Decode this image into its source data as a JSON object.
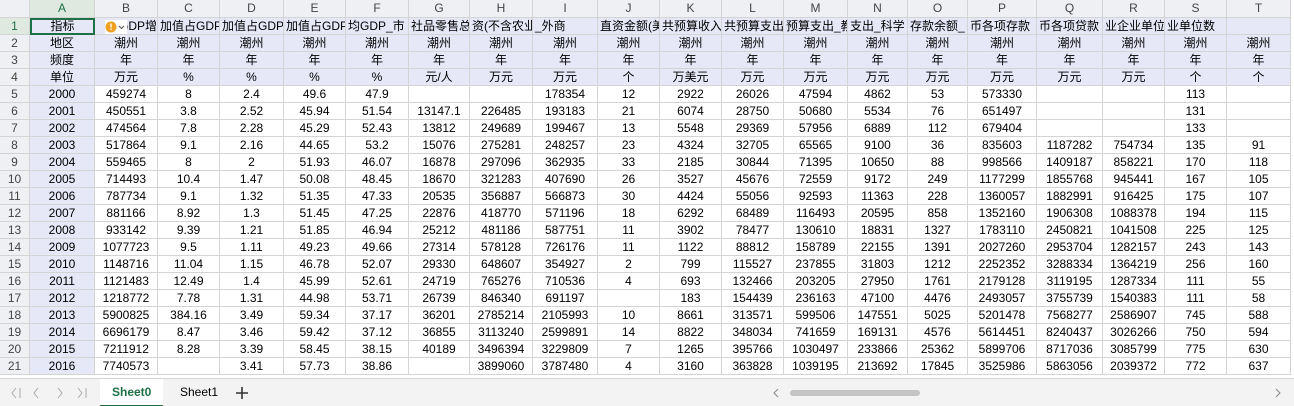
{
  "sheet": {
    "columns": [
      "A",
      "B",
      "C",
      "D",
      "E",
      "F",
      "G",
      "H",
      "I",
      "J",
      "K",
      "L",
      "M",
      "N",
      "O",
      "P",
      "Q",
      "R",
      "S",
      "T"
    ],
    "rows": [
      {
        "number": 1,
        "cells": [
          "指标",
          "GDP增速_市",
          "加值占GDP",
          "加值占GDP",
          "加值占GDP",
          "均GDP_市",
          "社品零售总额",
          "资(不含农业数",
          "_外商",
          "直资金额(美",
          "共预算收入",
          "共预算支出",
          "预算支出_教",
          "支出_科学",
          "存款余额_",
          "币各项存款",
          "币各项贷款",
          "业企业单位",
          "业单位数",
          null
        ]
      },
      {
        "number": 2,
        "cells": [
          "地区",
          "潮州",
          "潮州",
          "潮州",
          "潮州",
          "潮州",
          "潮州",
          "潮州",
          "潮州",
          "潮州",
          "潮州",
          "潮州",
          "潮州",
          "潮州",
          "潮州",
          "潮州",
          "潮州",
          "潮州",
          "潮州",
          "潮州"
        ]
      },
      {
        "number": 3,
        "cells": [
          "频度",
          "年",
          "年",
          "年",
          "年",
          "年",
          "年",
          "年",
          "年",
          "年",
          "年",
          "年",
          "年",
          "年",
          "年",
          "年",
          "年",
          "年",
          "年",
          "年"
        ]
      },
      {
        "number": 4,
        "cells": [
          "单位",
          "万元",
          "%",
          "%",
          "%",
          "%",
          "元/人",
          "万元",
          "万元",
          "个",
          "万美元",
          "万元",
          "万元",
          "万元",
          "万元",
          "万元",
          "万元",
          "万元",
          "个",
          "个"
        ]
      },
      {
        "number": 5,
        "cells": [
          2000,
          459274,
          8,
          2.4,
          49.6,
          47.9,
          null,
          null,
          178354,
          12,
          2922,
          26026,
          47594,
          4862,
          53,
          573330,
          null,
          null,
          113,
          null
        ]
      },
      {
        "number": 6,
        "cells": [
          2001,
          450551,
          3.8,
          2.52,
          45.94,
          51.54,
          13147.1,
          226485,
          193183,
          21,
          6074,
          28750,
          50680,
          5534,
          76,
          651497,
          null,
          null,
          131,
          null
        ]
      },
      {
        "number": 7,
        "cells": [
          2002,
          474564,
          7.8,
          2.28,
          45.29,
          52.43,
          13812,
          249689,
          199467,
          13,
          5548,
          29369,
          57956,
          6889,
          112,
          679404,
          null,
          null,
          133,
          null
        ]
      },
      {
        "number": 8,
        "cells": [
          2003,
          517864,
          9.1,
          2.16,
          44.65,
          53.2,
          15076,
          275281,
          248257,
          23,
          4324,
          32705,
          65565,
          9100,
          36,
          835603,
          1187282,
          754734,
          135,
          91
        ]
      },
      {
        "number": 9,
        "cells": [
          2004,
          559465,
          8,
          2,
          51.93,
          46.07,
          16878,
          297096,
          362935,
          33,
          2185,
          30844,
          71395,
          10650,
          88,
          998566,
          1409187,
          858221,
          170,
          118
        ]
      },
      {
        "number": 10,
        "cells": [
          2005,
          714493,
          10.4,
          1.47,
          50.08,
          48.45,
          18670,
          321283,
          407690,
          26,
          3527,
          45676,
          72559,
          9172,
          249,
          1177299,
          1855768,
          945441,
          167,
          105
        ]
      },
      {
        "number": 11,
        "cells": [
          2006,
          787734,
          9.1,
          1.32,
          51.35,
          47.33,
          20535,
          356887,
          566873,
          30,
          4424,
          55056,
          92593,
          11363,
          228,
          1360057,
          1882991,
          916425,
          175,
          107
        ]
      },
      {
        "number": 12,
        "cells": [
          2007,
          881166,
          8.92,
          1.3,
          51.45,
          47.25,
          22876,
          418770,
          571196,
          18,
          6292,
          68489,
          116493,
          20595,
          858,
          1352160,
          1906308,
          1088378,
          194,
          115
        ]
      },
      {
        "number": 13,
        "cells": [
          2008,
          933142,
          9.39,
          1.21,
          51.85,
          46.94,
          25212,
          481186,
          587751,
          11,
          3902,
          78477,
          130610,
          18831,
          1327,
          1783110,
          2450821,
          1041508,
          225,
          125
        ]
      },
      {
        "number": 14,
        "cells": [
          2009,
          1077723,
          9.5,
          1.11,
          49.23,
          49.66,
          27314,
          578128,
          726176,
          11,
          1122,
          88812,
          158789,
          22155,
          1391,
          2027260,
          2953704,
          1282157,
          243,
          143
        ]
      },
      {
        "number": 15,
        "cells": [
          2010,
          1148716,
          11.04,
          1.15,
          46.78,
          52.07,
          29330,
          648607,
          354927,
          2,
          799,
          115527,
          237855,
          31803,
          1212,
          2252352,
          3288334,
          1364219,
          256,
          160
        ]
      },
      {
        "number": 16,
        "cells": [
          2011,
          1121483,
          12.49,
          1.4,
          45.99,
          52.61,
          24719,
          765276,
          710536,
          4,
          693,
          132466,
          203205,
          27950,
          1761,
          2179128,
          3119195,
          1287334,
          111,
          55
        ]
      },
      {
        "number": 17,
        "cells": [
          2012,
          1218772,
          7.78,
          1.31,
          44.98,
          53.71,
          26739,
          846340,
          691197,
          null,
          183,
          154439,
          236163,
          47100,
          4476,
          2493057,
          3755739,
          1540383,
          111,
          58
        ]
      },
      {
        "number": 18,
        "cells": [
          2013,
          5900825,
          384.16,
          3.49,
          59.34,
          37.17,
          36201,
          2785214,
          2105993,
          10,
          8661,
          313571,
          599506,
          147551,
          5025,
          5201478,
          7568277,
          2586907,
          745,
          588
        ]
      },
      {
        "number": 19,
        "cells": [
          2014,
          6696179,
          8.47,
          3.46,
          59.42,
          37.12,
          36855,
          3113240,
          2599891,
          14,
          8822,
          348034,
          741659,
          169131,
          4576,
          5614451,
          8240437,
          3026266,
          750,
          594
        ]
      },
      {
        "number": 20,
        "cells": [
          2015,
          7211912,
          8.28,
          3.39,
          58.45,
          38.15,
          40189,
          3496394,
          3229809,
          7,
          1265,
          395766,
          1030497,
          233866,
          25362,
          5899706,
          8717036,
          3085799,
          775,
          630
        ]
      },
      {
        "number": 21,
        "cells": [
          2016,
          7740573,
          null,
          3.41,
          57.73,
          38.86,
          null,
          3899060,
          3787480,
          4,
          3160,
          363828,
          1039195,
          213692,
          17845,
          3525986,
          5863056,
          2039372,
          772,
          637
        ]
      }
    ],
    "tabs": [
      "Sheet0",
      "Sheet1"
    ]
  }
}
